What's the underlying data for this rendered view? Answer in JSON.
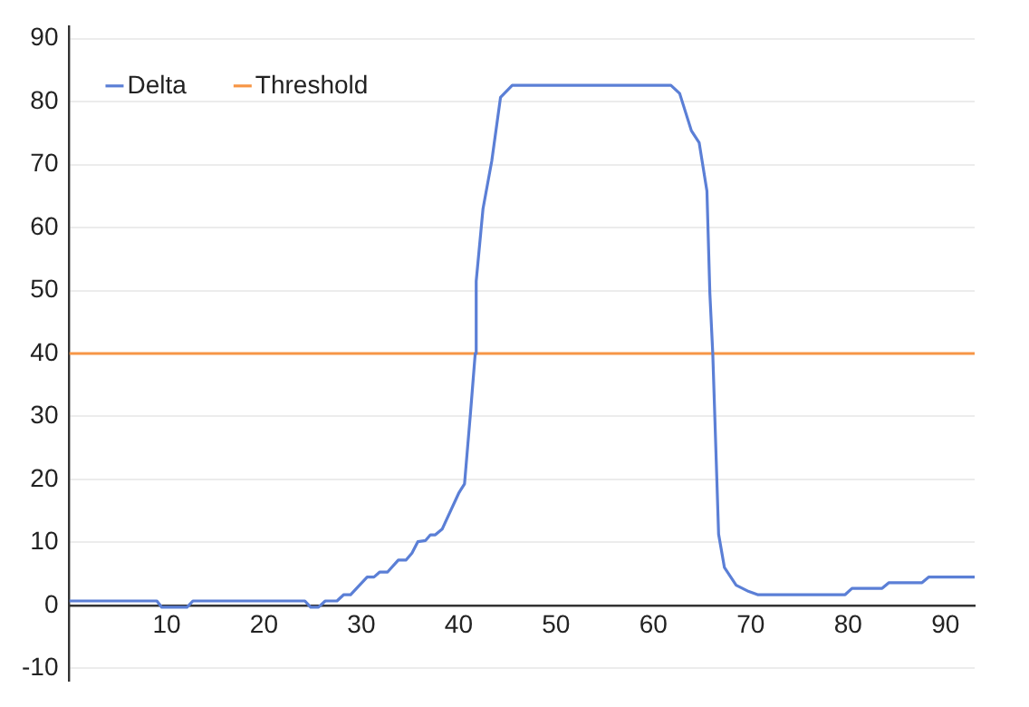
{
  "chart_data": {
    "type": "line",
    "xlim": [
      0,
      93
    ],
    "xticks": [
      10,
      20,
      30,
      40,
      50,
      60,
      70,
      80,
      90
    ],
    "ylim": [
      -12,
      92
    ],
    "yticks": [
      -10,
      0,
      10,
      20,
      30,
      40,
      50,
      60,
      70,
      80,
      90
    ],
    "grid": "y",
    "legend": "top left",
    "marker": "none",
    "line_style": "solid",
    "series": [
      {
        "name": "Delta",
        "color": "#5b7fd6",
        "x": [
          0,
          9,
          9.5,
          12.1,
          12.7,
          24.2,
          24.8,
          25.6,
          26.3,
          27.5,
          28.2,
          28.9,
          30.6,
          31.3,
          31.9,
          32.7,
          33.8,
          34.6,
          35.2,
          35.8,
          36.6,
          37.1,
          37.6,
          38.3,
          40,
          40.6,
          41.2,
          41.7,
          41.8,
          42.5,
          43.4,
          44.3,
          45.5,
          61.8,
          62.7,
          63.9,
          64.7,
          65.5,
          65.8,
          66.1,
          66.7,
          67.3,
          68.5,
          69.8,
          70.7,
          79.7,
          80.4,
          83.5,
          84.2,
          87.6,
          88.3,
          93
        ],
        "values": [
          0.7,
          0.7,
          -0.3,
          -0.3,
          0.7,
          0.7,
          -0.3,
          -0.3,
          0.7,
          0.7,
          1.7,
          1.7,
          4.5,
          4.5,
          5.3,
          5.3,
          7.2,
          7.2,
          8.3,
          10.1,
          10.3,
          11.2,
          11.2,
          12.1,
          17.8,
          19.3,
          30.3,
          40,
          51.5,
          63,
          70.6,
          80.7,
          82.6,
          82.6,
          81.3,
          75.4,
          73.5,
          65.8,
          49.6,
          40,
          11.3,
          6,
          3.2,
          2.2,
          1.7,
          1.7,
          2.7,
          2.7,
          3.6,
          3.6,
          4.5,
          4.5
        ]
      },
      {
        "name": "Threshold",
        "color": "#f79646",
        "x": [
          0,
          93
        ],
        "values": [
          40,
          40
        ]
      }
    ]
  }
}
